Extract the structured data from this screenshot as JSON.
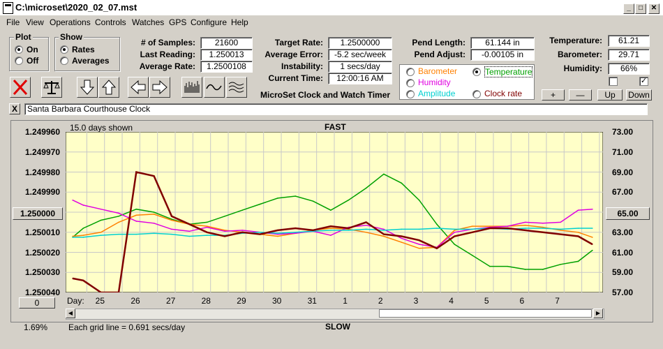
{
  "window": {
    "title": "C:\\microset\\2020_02_07.mst",
    "minimize": "_",
    "maximize": "□",
    "close": "✕"
  },
  "menu": [
    "File",
    "View",
    "Operations",
    "Controls",
    "Watches",
    "GPS",
    "Configure",
    "Help"
  ],
  "plot_group": {
    "title": "Plot",
    "on": "On",
    "off": "Off",
    "selected": "On"
  },
  "show_group": {
    "title": "Show",
    "rates": "Rates",
    "averages": "Averages",
    "selected": "Rates"
  },
  "stats": {
    "samples_label": "# of Samples:",
    "samples": "21600",
    "last_label": "Last Reading:",
    "last": "1.250013",
    "avg_label": "Average Rate:",
    "avg": "1.2500108",
    "target_label": "Target Rate:",
    "target": "1.2500000",
    "averr_label": "Average Error:",
    "averr": "-5.2 sec/week",
    "instab_label": "Instability:",
    "instab": "1 secs/day",
    "time_label": "Current Time:",
    "time": "12:00:16 AM",
    "pendlen_label": "Pend Length:",
    "pendlen": "61.144 in",
    "pendadj_label": "Pend Adjust:",
    "pendadj": "-0.00105 in",
    "temp_label": "Temperature:",
    "temp": "61.21",
    "baro_label": "Barometer:",
    "baro": "29.71",
    "hum_label": "Humidity:",
    "hum": "66%"
  },
  "app_caption": "MicroSet Clock and Watch Timer",
  "sensor_select": {
    "barometer": "Barometer",
    "temperature": "Temperature",
    "humidity": "Humidity",
    "amplitude": "Amplitude",
    "clockrate": "Clock rate",
    "selected": "Temperature",
    "colors": {
      "barometer": "#ff8000",
      "temperature": "#00a000",
      "humidity": "#e000e0",
      "amplitude": "#00d0d0",
      "clockrate": "#800000"
    }
  },
  "sensor_buttons": {
    "plus": "+",
    "minus": "—",
    "up": "Up",
    "down": "Down"
  },
  "checkboxes": [
    {
      "checked": false
    },
    {
      "checked": true
    }
  ],
  "toolbar_icons": [
    "close-x-icon",
    "balance-scale-icon",
    "arrow-down-icon",
    "arrow-up-icon",
    "arrow-left-icon",
    "arrow-right-icon",
    "bar-graph-icon",
    "wave-icon",
    "multi-wave-icon"
  ],
  "clock_name_close": "X",
  "clock_name": "Santa Barbara Courthouse Clock",
  "plot": {
    "days_shown": "15.0 days shown",
    "fast": "FAST",
    "slow": "SLOW",
    "grid_note": "Each grid line = 0.691 secs/day",
    "percent": "1.69%",
    "left_button": "1.250000",
    "right_button": "65.00",
    "bottom_button": "0",
    "day_label": "Day:",
    "left_ticks": [
      "1.249960",
      "1.249970",
      "1.249980",
      "1.249990",
      "1.250000",
      "1.250010",
      "1.250020",
      "1.250030",
      "1.250040"
    ],
    "right_ticks": [
      "73.00",
      "71.00",
      "69.00",
      "67.00",
      "65.00",
      "63.00",
      "61.00",
      "59.00",
      "57.00"
    ],
    "day_ticks": [
      "25",
      "26",
      "27",
      "28",
      "29",
      "30",
      "31",
      "1",
      "2",
      "3",
      "4",
      "5",
      "6",
      "7"
    ]
  },
  "chart_data": {
    "type": "line",
    "x_days": [
      24.2,
      24.5,
      25,
      25.5,
      26,
      26.5,
      27,
      27.5,
      28,
      28.5,
      29,
      29.5,
      30,
      30.5,
      31,
      31.5,
      1.0,
      1.5,
      2.0,
      2.5,
      3.0,
      3.5,
      4.0,
      4.5,
      5.0,
      5.5,
      6.0,
      6.5,
      7.0,
      7.5,
      7.9
    ],
    "series": [
      {
        "name": "Clock rate",
        "color": "#800000",
        "values": [
          1.250033,
          1.250034,
          1.25004,
          1.25004,
          1.24998,
          1.249982,
          1.250002,
          1.250006,
          1.25001,
          1.250012,
          1.25001,
          1.250011,
          1.250009,
          1.250008,
          1.250009,
          1.250007,
          1.250008,
          1.250005,
          1.250011,
          1.250012,
          1.250014,
          1.250018,
          1.250012,
          1.25001,
          1.250008,
          1.250008,
          1.250009,
          1.25001,
          1.250011,
          1.250012,
          1.250016
        ]
      },
      {
        "name": "Temperature",
        "color": "#00a000",
        "values": [
          62.5,
          63.4,
          64.2,
          64.6,
          65.3,
          65.0,
          64.3,
          63.8,
          64.0,
          64.6,
          65.2,
          65.8,
          66.4,
          66.6,
          66.1,
          65.2,
          66.2,
          67.4,
          68.8,
          67.9,
          66.2,
          63.8,
          61.8,
          60.7,
          59.6,
          59.6,
          59.3,
          59.3,
          59.8,
          60.1,
          61.2
        ]
      },
      {
        "name": "Barometer",
        "color": "#ff8000",
        "values": [
          62.6,
          62.7,
          63.0,
          64.0,
          64.7,
          64.8,
          64.2,
          63.8,
          63.6,
          63.2,
          63.0,
          62.8,
          62.6,
          62.9,
          63.2,
          63.4,
          63.3,
          63.0,
          62.6,
          62.0,
          61.4,
          61.5,
          63.2,
          63.6,
          63.6,
          63.6,
          63.7,
          63.5,
          63.2,
          63.0,
          62.5
        ]
      },
      {
        "name": "Humidity",
        "color": "#e000e0",
        "values": [
          66.2,
          65.7,
          65.3,
          64.9,
          64.1,
          63.9,
          63.3,
          63.1,
          63.5,
          63.1,
          63.2,
          63.0,
          62.8,
          62.9,
          63.1,
          62.7,
          63.5,
          63.7,
          63.3,
          62.4,
          61.8,
          61.5,
          63.0,
          63.3,
          63.5,
          63.6,
          64.0,
          63.9,
          64.0,
          65.2,
          65.3
        ]
      },
      {
        "name": "Amplitude",
        "color": "#00d0d0",
        "values": [
          62.5,
          62.5,
          62.7,
          62.8,
          62.8,
          62.9,
          62.8,
          62.6,
          62.7,
          62.7,
          62.9,
          63.0,
          62.9,
          63.0,
          63.1,
          63.2,
          63.2,
          63.3,
          63.2,
          63.3,
          63.3,
          63.4,
          63.3,
          63.3,
          63.4,
          63.3,
          63.4,
          63.4,
          63.3,
          63.4,
          63.4
        ]
      }
    ],
    "ylim_left": [
      1.24996,
      1.25004
    ],
    "ylim_right": [
      57.0,
      73.0
    ],
    "grid": true,
    "legend": "none"
  }
}
